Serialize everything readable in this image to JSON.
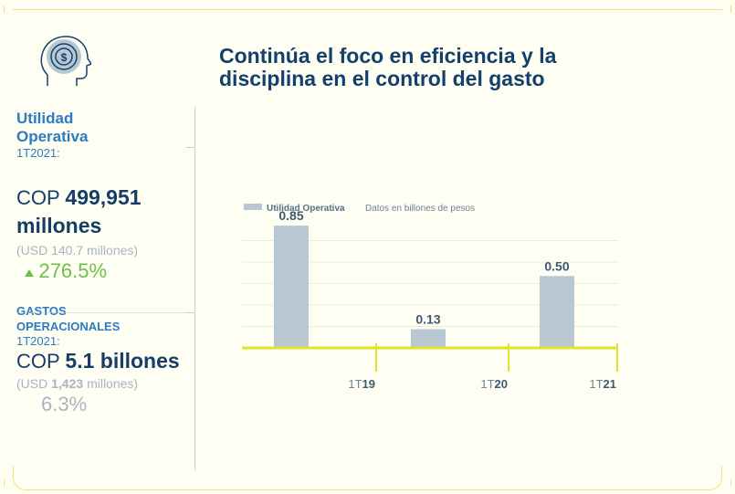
{
  "title": "Continúa el foco en eficiencia y la disciplina en el control del gasto",
  "icon": "head-dollar-icon",
  "colors": {
    "accent": "#e3e22c",
    "bar": "#b7c8d3",
    "title": "#13406c",
    "label_blue": "#2a7bc4",
    "up": "#6fbf4a"
  },
  "kpi1": {
    "label_line1": "Utilidad",
    "label_line2": "Operativa",
    "period": "1T2021:",
    "currency": "COP",
    "value": "499,951",
    "unit": "millones",
    "usd": "(USD 140.7 millones)",
    "change_icon": "up-triangle-icon",
    "change": "276.5%"
  },
  "kpi2": {
    "label_line1": "GASTOS",
    "label_line2": "OPERACIONALES",
    "period": "1T2021:",
    "currency": "COP",
    "value": "5.1 billones",
    "usd_prefix": "(USD",
    "usd_value": "1,423",
    "usd_suffix": "millones)",
    "change": "6.3%"
  },
  "chart_data": {
    "type": "bar",
    "legend": {
      "series": "Utilidad Operativa",
      "note": "Datos en billones de pesos"
    },
    "categories": [
      "1T19",
      "1T20",
      "1T21"
    ],
    "category_labels": [
      {
        "prefix": "1T",
        "suffix": "19"
      },
      {
        "prefix": "1T",
        "suffix": "20"
      },
      {
        "prefix": "1T",
        "suffix": "21"
      }
    ],
    "series": [
      {
        "name": "Utilidad Operativa",
        "values": [
          0.85,
          0.13,
          0.5
        ]
      }
    ],
    "data_labels": [
      "0.85",
      "0.13",
      "0.50"
    ],
    "ylim": [
      0,
      1
    ],
    "grid": true
  }
}
